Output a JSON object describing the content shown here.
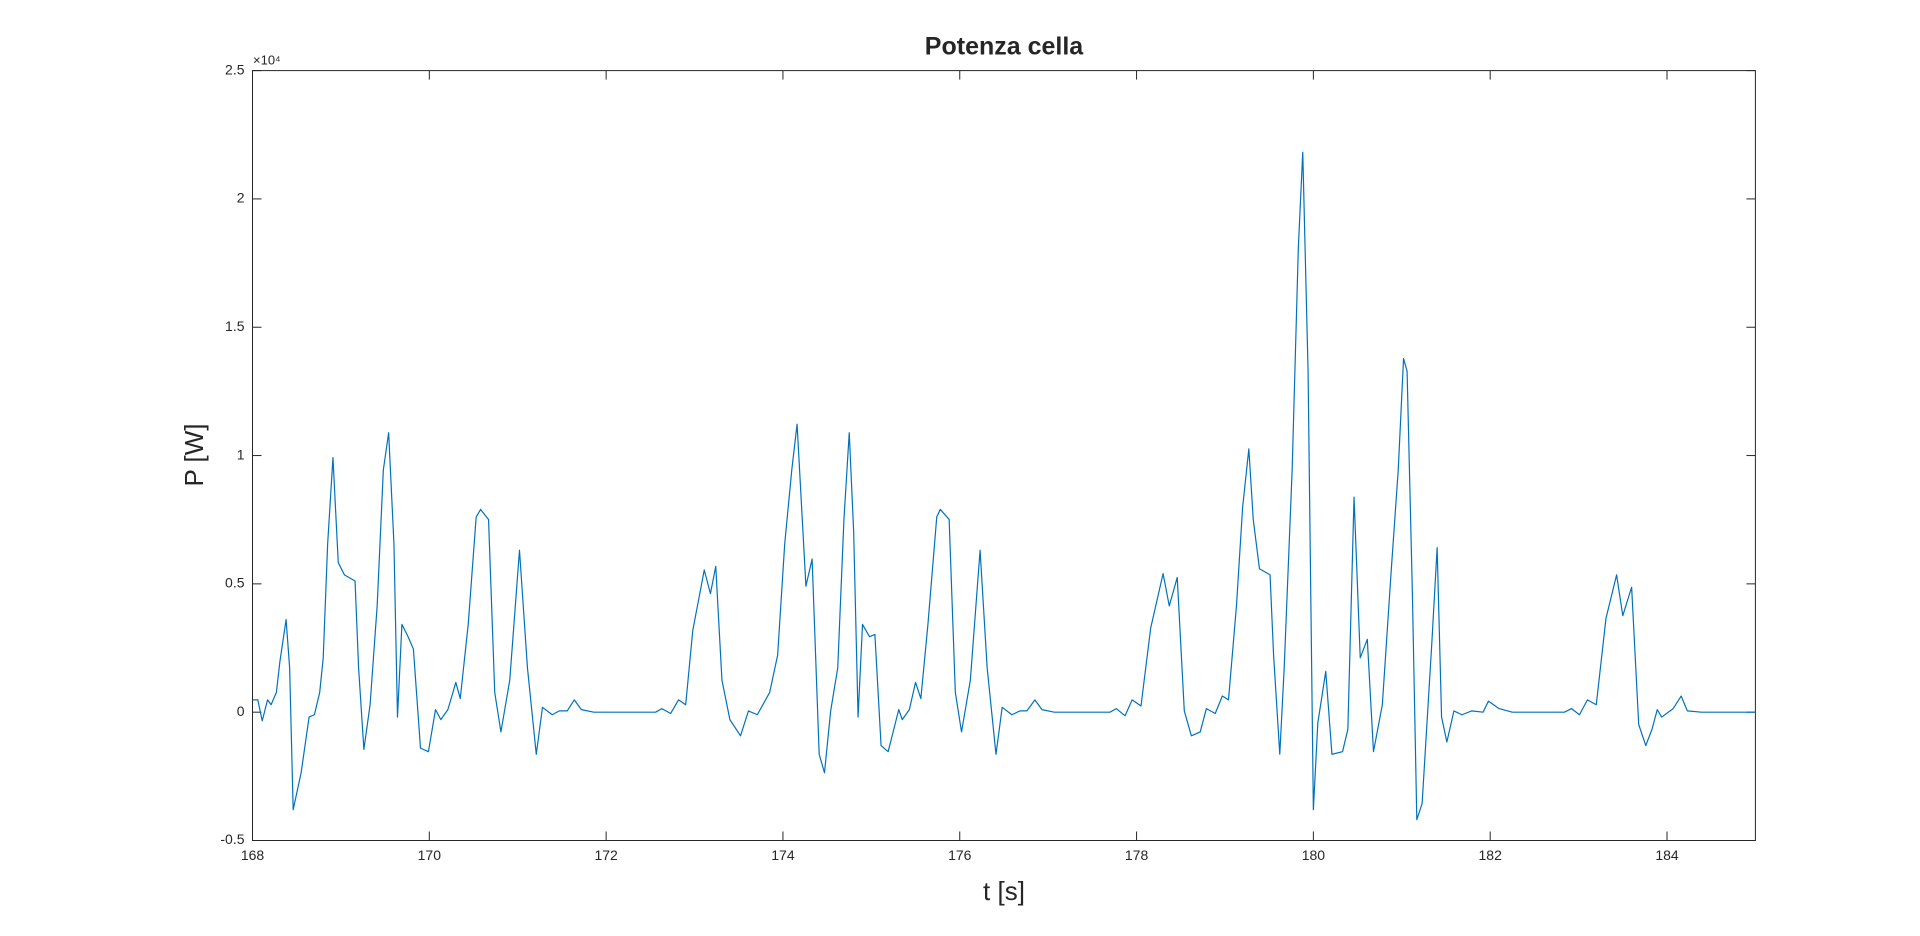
{
  "chart_data": {
    "type": "line",
    "title": "Potenza cella",
    "x_label": "t [s]",
    "y_label": "P [W]",
    "y_exponent": "×10⁴",
    "color": "#0072BD",
    "xlim": [
      168,
      185
    ],
    "xticks": [
      168,
      170,
      172,
      174,
      176,
      178,
      180,
      182,
      184
    ],
    "ylim": [
      -5000,
      25000
    ],
    "yticks": [
      {
        "value": -5000,
        "label": "-0.5"
      },
      0,
      {
        "value": 5000,
        "label": "0.5"
      },
      {
        "value": 10000,
        "label": "1"
      },
      {
        "value": 15000,
        "label": "1.5"
      },
      {
        "value": 20000,
        "label": "2"
      },
      {
        "value": 25000,
        "label": "2.5"
      }
    ],
    "x": [
      168.0,
      168.06,
      168.11,
      168.17,
      168.21,
      168.27,
      168.31,
      168.38,
      168.42,
      168.46,
      168.55,
      168.64,
      168.7,
      168.76,
      168.8,
      168.85,
      168.91,
      168.97,
      169.04,
      169.16,
      169.2,
      169.26,
      169.33,
      169.41,
      169.48,
      169.54,
      169.6,
      169.64,
      169.69,
      169.76,
      169.82,
      169.9,
      169.99,
      170.07,
      170.13,
      170.21,
      170.3,
      170.35,
      170.44,
      170.53,
      170.58,
      170.67,
      170.74,
      170.81,
      170.91,
      171.02,
      171.11,
      171.21,
      171.28,
      171.39,
      171.47,
      171.56,
      171.64,
      171.72,
      171.86,
      172.56,
      172.63,
      172.73,
      172.82,
      172.9,
      172.98,
      173.11,
      173.18,
      173.24,
      173.31,
      173.4,
      173.52,
      173.61,
      173.71,
      173.85,
      173.94,
      174.02,
      174.1,
      174.16,
      174.26,
      174.33,
      174.41,
      174.47,
      174.54,
      174.62,
      174.69,
      174.75,
      174.8,
      174.85,
      174.9,
      174.98,
      175.04,
      175.11,
      175.19,
      175.31,
      175.35,
      175.43,
      175.5,
      175.56,
      175.64,
      175.74,
      175.78,
      175.88,
      175.95,
      176.02,
      176.12,
      176.23,
      176.31,
      176.41,
      176.48,
      176.59,
      176.68,
      176.76,
      176.85,
      176.93,
      177.07,
      177.7,
      177.77,
      177.87,
      177.95,
      178.05,
      178.16,
      178.3,
      178.37,
      178.46,
      178.54,
      178.62,
      178.72,
      178.79,
      178.89,
      178.97,
      179.04,
      179.13,
      179.2,
      179.27,
      179.32,
      179.39,
      179.51,
      179.55,
      179.62,
      179.67,
      179.76,
      179.83,
      179.88,
      179.94,
      180.0,
      180.05,
      180.14,
      180.21,
      180.33,
      180.39,
      180.46,
      180.53,
      180.61,
      180.68,
      180.78,
      180.88,
      180.96,
      181.02,
      181.06,
      181.12,
      181.17,
      181.23,
      181.34,
      181.4,
      181.45,
      181.51,
      181.59,
      181.68,
      181.79,
      181.92,
      181.98,
      182.1,
      182.25,
      182.84,
      182.92,
      183.01,
      183.1,
      183.2,
      183.31,
      183.43,
      183.5,
      183.6,
      183.68,
      183.76,
      183.83,
      183.89,
      183.94,
      184.07,
      184.16,
      184.23,
      184.39,
      185.0
    ],
    "values": [
      480,
      480,
      -340,
      480,
      290,
      770,
      1975,
      3610,
      1730,
      -3800,
      -2360,
      -190,
      -100,
      770,
      2120,
      6550,
      9920,
      5830,
      5350,
      5110,
      1730,
      -1450,
      290,
      4140,
      9440,
      10890,
      6550,
      -190,
      3420,
      2940,
      2460,
      -1400,
      -1540,
      100,
      -290,
      100,
      1160,
      530,
      3420,
      7610,
      7900,
      7510,
      770,
      -770,
      1250,
      6310,
      1730,
      -1640,
      190,
      -100,
      50,
      50,
      480,
      100,
      0,
      0,
      140,
      -50,
      480,
      290,
      3180,
      5540,
      4620,
      5680,
      1250,
      -290,
      -920,
      50,
      -100,
      770,
      2220,
      6550,
      9440,
      11220,
      4910,
      5970,
      -1640,
      -2360,
      50,
      1730,
      7510,
      10890,
      7030,
      -190,
      3420,
      2940,
      3030,
      -1300,
      -1540,
      100,
      -290,
      100,
      1160,
      530,
      3420,
      7610,
      7900,
      7510,
      770,
      -770,
      1250,
      6310,
      1730,
      -1640,
      190,
      -100,
      50,
      50,
      480,
      100,
      0,
      0,
      140,
      -140,
      480,
      240,
      3280,
      5400,
      4140,
      5250,
      50,
      -920,
      -770,
      140,
      -50,
      630,
      480,
      4140,
      8000,
      10260,
      7510,
      5590,
      5350,
      2220,
      -1640,
      1730,
      9440,
      18110,
      21820,
      13290,
      -3800,
      -430,
      1590,
      -1640,
      -1540,
      -670,
      8380,
      2120,
      2840,
      -1540,
      290,
      5490,
      9440,
      13780,
      13290,
      4620,
      -4190,
      -3560,
      2700,
      6410,
      -190,
      -1160,
      50,
      -100,
      50,
      0,
      430,
      140,
      0,
      0,
      140,
      -100,
      480,
      290,
      3660,
      5350,
      3760,
      4870,
      -480,
      -1300,
      -670,
      100,
      -190,
      140,
      630,
      50,
      0,
      0
    ]
  }
}
